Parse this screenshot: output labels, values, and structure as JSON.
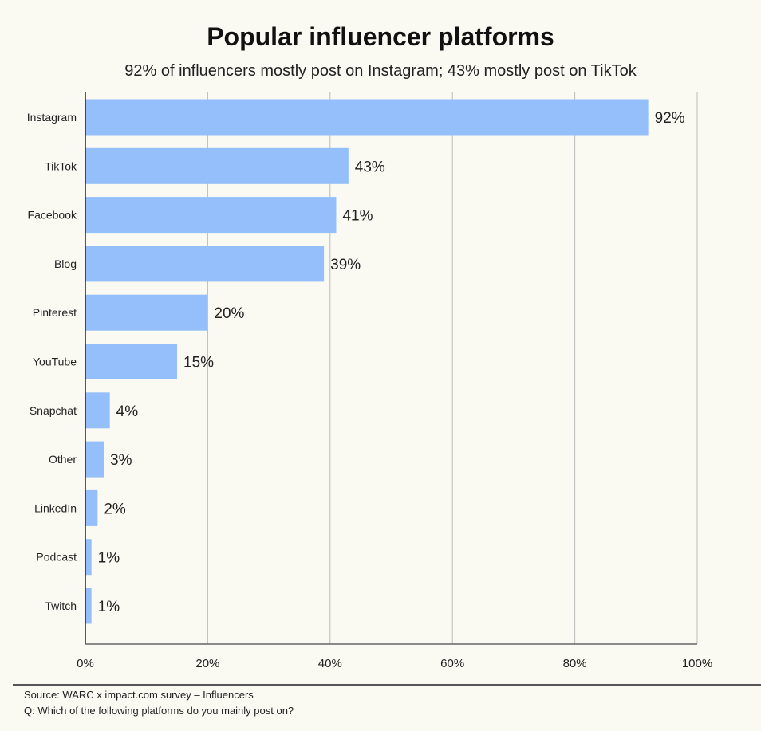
{
  "title": "Popular influencer platforms",
  "subtitle": "92% of influencers mostly post on Instagram; 43% mostly post on TikTok",
  "footer": {
    "source": "Source: WARC x impact.com survey – Influencers",
    "question": "Q: Which of the following platforms do you mainly post on?"
  },
  "chart_data": {
    "type": "bar",
    "orientation": "horizontal",
    "title": "Popular influencer platforms",
    "subtitle": "92% of influencers mostly post on Instagram; 43% mostly post on TikTok",
    "categories": [
      "Instagram",
      "TikTok",
      "Facebook",
      "Blog",
      "Pinterest",
      "YouTube",
      "Snapchat",
      "Other",
      "LinkedIn",
      "Podcast",
      "Twitch"
    ],
    "values": [
      92,
      43,
      41,
      39,
      20,
      15,
      4,
      3,
      2,
      1,
      1
    ],
    "data_labels": [
      "92%",
      "43%",
      "41%",
      "39%",
      "20%",
      "15%",
      "4%",
      "3%",
      "2%",
      "1%",
      "1%"
    ],
    "xlim": [
      0,
      100
    ],
    "x_ticks": [
      "0%",
      "20%",
      "40%",
      "60%",
      "80%",
      "100%"
    ],
    "grid": true,
    "bar_color": "#94bffa"
  }
}
